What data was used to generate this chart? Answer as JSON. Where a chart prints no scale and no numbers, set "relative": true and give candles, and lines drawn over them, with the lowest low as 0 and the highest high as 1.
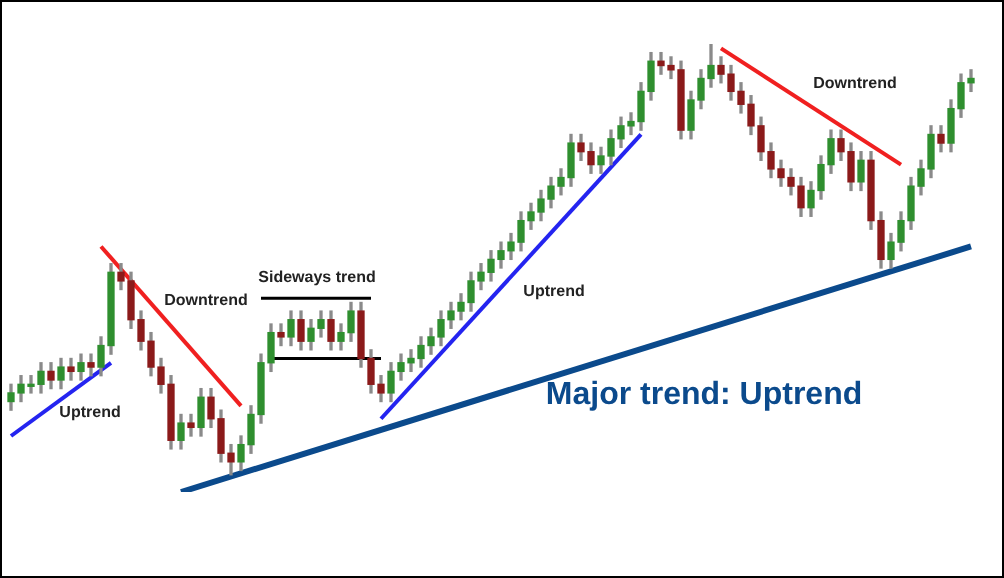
{
  "chart_data": {
    "type": "candlestick",
    "relative": true,
    "categories": [
      null,
      null,
      null,
      null,
      null,
      null,
      null,
      null,
      null,
      null,
      null,
      null,
      null,
      null,
      null,
      null,
      null,
      null,
      null,
      null,
      null,
      null,
      null,
      null,
      null,
      null,
      null,
      null,
      null,
      null,
      null,
      null,
      null,
      null,
      null,
      null,
      null,
      null,
      null,
      null,
      null,
      null,
      null,
      null,
      null,
      null,
      null,
      null,
      null,
      null,
      null,
      null,
      null,
      null,
      null,
      null,
      null,
      null,
      null,
      null,
      null,
      null,
      null,
      null,
      null,
      null,
      null,
      null,
      null,
      null,
      null,
      null,
      null,
      null,
      null,
      null,
      null,
      null,
      null,
      null,
      null,
      null,
      null,
      null,
      null,
      null,
      null,
      null,
      null,
      null,
      null,
      null,
      null,
      null,
      null,
      null,
      null
    ],
    "ohlc": [
      [
        0.17,
        0.21,
        0.15,
        0.19
      ],
      [
        0.19,
        0.23,
        0.17,
        0.21
      ],
      [
        0.21,
        0.23,
        0.19,
        0.21
      ],
      [
        0.21,
        0.26,
        0.19,
        0.24
      ],
      [
        0.24,
        0.26,
        0.2,
        0.22
      ],
      [
        0.22,
        0.27,
        0.2,
        0.25
      ],
      [
        0.25,
        0.27,
        0.22,
        0.24
      ],
      [
        0.24,
        0.28,
        0.22,
        0.26
      ],
      [
        0.26,
        0.28,
        0.23,
        0.25
      ],
      [
        0.25,
        0.32,
        0.23,
        0.3
      ],
      [
        0.3,
        0.49,
        0.28,
        0.47
      ],
      [
        0.47,
        0.49,
        0.43,
        0.45
      ],
      [
        0.45,
        0.47,
        0.34,
        0.36
      ],
      [
        0.36,
        0.38,
        0.29,
        0.31
      ],
      [
        0.31,
        0.33,
        0.23,
        0.25
      ],
      [
        0.25,
        0.27,
        0.19,
        0.21
      ],
      [
        0.21,
        0.23,
        0.06,
        0.08
      ],
      [
        0.08,
        0.14,
        0.06,
        0.12
      ],
      [
        0.12,
        0.14,
        0.09,
        0.11
      ],
      [
        0.11,
        0.2,
        0.09,
        0.18
      ],
      [
        0.18,
        0.2,
        0.11,
        0.13
      ],
      [
        0.13,
        0.15,
        0.03,
        0.05
      ],
      [
        0.05,
        0.07,
        0,
        0.03
      ],
      [
        0.03,
        0.09,
        0.01,
        0.07
      ],
      [
        0.07,
        0.16,
        0.05,
        0.14
      ],
      [
        0.14,
        0.28,
        0.12,
        0.26
      ],
      [
        0.26,
        0.35,
        0.24,
        0.33
      ],
      [
        0.33,
        0.35,
        0.3,
        0.32
      ],
      [
        0.32,
        0.38,
        0.3,
        0.36
      ],
      [
        0.36,
        0.38,
        0.29,
        0.31
      ],
      [
        0.31,
        0.36,
        0.29,
        0.34
      ],
      [
        0.34,
        0.38,
        0.32,
        0.36
      ],
      [
        0.36,
        0.38,
        0.29,
        0.31
      ],
      [
        0.31,
        0.35,
        0.29,
        0.33
      ],
      [
        0.33,
        0.4,
        0.31,
        0.38
      ],
      [
        0.38,
        0.4,
        0.25,
        0.27
      ],
      [
        0.27,
        0.29,
        0.19,
        0.21
      ],
      [
        0.21,
        0.23,
        0.17,
        0.19
      ],
      [
        0.19,
        0.26,
        0.17,
        0.24
      ],
      [
        0.24,
        0.28,
        0.22,
        0.26
      ],
      [
        0.26,
        0.29,
        0.24,
        0.27
      ],
      [
        0.27,
        0.32,
        0.25,
        0.3
      ],
      [
        0.3,
        0.34,
        0.28,
        0.32
      ],
      [
        0.32,
        0.38,
        0.3,
        0.36
      ],
      [
        0.36,
        0.4,
        0.34,
        0.38
      ],
      [
        0.38,
        0.42,
        0.36,
        0.4
      ],
      [
        0.4,
        0.47,
        0.38,
        0.45
      ],
      [
        0.45,
        0.49,
        0.43,
        0.47
      ],
      [
        0.47,
        0.52,
        0.45,
        0.5
      ],
      [
        0.5,
        0.54,
        0.48,
        0.52
      ],
      [
        0.52,
        0.56,
        0.5,
        0.54
      ],
      [
        0.54,
        0.61,
        0.52,
        0.59
      ],
      [
        0.59,
        0.63,
        0.57,
        0.61
      ],
      [
        0.61,
        0.66,
        0.59,
        0.64
      ],
      [
        0.64,
        0.69,
        0.62,
        0.67
      ],
      [
        0.67,
        0.71,
        0.65,
        0.69
      ],
      [
        0.69,
        0.79,
        0.67,
        0.77
      ],
      [
        0.77,
        0.79,
        0.73,
        0.75
      ],
      [
        0.75,
        0.77,
        0.7,
        0.72
      ],
      [
        0.72,
        0.76,
        0.7,
        0.74
      ],
      [
        0.74,
        0.8,
        0.72,
        0.78
      ],
      [
        0.78,
        0.83,
        0.76,
        0.81
      ],
      [
        0.81,
        0.84,
        0.79,
        0.82
      ],
      [
        0.82,
        0.91,
        0.8,
        0.89
      ],
      [
        0.89,
        0.98,
        0.87,
        0.96
      ],
      [
        0.96,
        0.98,
        0.93,
        0.95
      ],
      [
        0.95,
        0.97,
        0.92,
        0.94
      ],
      [
        0.94,
        0.96,
        0.78,
        0.8
      ],
      [
        0.8,
        0.89,
        0.78,
        0.87
      ],
      [
        0.87,
        0.94,
        0.85,
        0.92
      ],
      [
        0.92,
        1,
        0.9,
        0.95
      ],
      [
        0.95,
        0.97,
        0.91,
        0.93
      ],
      [
        0.93,
        0.95,
        0.87,
        0.89
      ],
      [
        0.89,
        0.91,
        0.84,
        0.86
      ],
      [
        0.86,
        0.88,
        0.79,
        0.81
      ],
      [
        0.81,
        0.83,
        0.73,
        0.75
      ],
      [
        0.75,
        0.77,
        0.69,
        0.71
      ],
      [
        0.71,
        0.73,
        0.67,
        0.69
      ],
      [
        0.69,
        0.71,
        0.65,
        0.67
      ],
      [
        0.67,
        0.69,
        0.6,
        0.62
      ],
      [
        0.62,
        0.68,
        0.6,
        0.66
      ],
      [
        0.66,
        0.74,
        0.64,
        0.72
      ],
      [
        0.72,
        0.8,
        0.7,
        0.78
      ],
      [
        0.78,
        0.8,
        0.73,
        0.75
      ],
      [
        0.75,
        0.77,
        0.66,
        0.68
      ],
      [
        0.68,
        0.75,
        0.66,
        0.73
      ],
      [
        0.73,
        0.75,
        0.57,
        0.59
      ],
      [
        0.59,
        0.61,
        0.48,
        0.5
      ],
      [
        0.5,
        0.56,
        0.48,
        0.54
      ],
      [
        0.54,
        0.61,
        0.52,
        0.59
      ],
      [
        0.59,
        0.69,
        0.57,
        0.67
      ],
      [
        0.67,
        0.73,
        0.65,
        0.71
      ],
      [
        0.71,
        0.81,
        0.69,
        0.79
      ],
      [
        0.79,
        0.81,
        0.75,
        0.77
      ],
      [
        0.77,
        0.87,
        0.75,
        0.85
      ],
      [
        0.85,
        0.93,
        0.83,
        0.91
      ],
      [
        0.91,
        0.94,
        0.89,
        0.92
      ]
    ],
    "series": [
      {
        "type": "line",
        "color": "#2424f0",
        "values": [
          0.09,
          null,
          null,
          null,
          null,
          null,
          null,
          null,
          null,
          null,
          0.26,
          null,
          null,
          null,
          null,
          null,
          null,
          null,
          null,
          null,
          null,
          null,
          null,
          null,
          null,
          null,
          null,
          null,
          null,
          null,
          null,
          null,
          null,
          null,
          null,
          null,
          null,
          null,
          null,
          null,
          null,
          null,
          null,
          null,
          null,
          null,
          null,
          null,
          null,
          null,
          null,
          null,
          null,
          null,
          null,
          null,
          null,
          null,
          null,
          null,
          null,
          null,
          null,
          null,
          null,
          null,
          null,
          null,
          null,
          null,
          null,
          null,
          null,
          null,
          null,
          null,
          null,
          null,
          null,
          null,
          null,
          null,
          null,
          null,
          null,
          null,
          null,
          null,
          null,
          null,
          null,
          null,
          null,
          null,
          null,
          null,
          null
        ]
      },
      {
        "type": "line",
        "color": "#f02020",
        "values": [
          null,
          null,
          null,
          null,
          null,
          null,
          null,
          null,
          null,
          0.53,
          null,
          null,
          null,
          null,
          null,
          null,
          null,
          null,
          null,
          null,
          null,
          null,
          null,
          0.16,
          null,
          null,
          null,
          null,
          null,
          null,
          null,
          null,
          null,
          null,
          null,
          null,
          null,
          null,
          null,
          null,
          null,
          null,
          null,
          null,
          null,
          null,
          null,
          null,
          null,
          null,
          null,
          null,
          null,
          null,
          null,
          null,
          null,
          null,
          null,
          null,
          null,
          null,
          null,
          null,
          null,
          null,
          null,
          null,
          null,
          null,
          null,
          null,
          null,
          null,
          null,
          null,
          null,
          null,
          null,
          null,
          null,
          null,
          null,
          null,
          null,
          null,
          null,
          null,
          null,
          null,
          null,
          null,
          null,
          null,
          null,
          null,
          null
        ]
      },
      {
        "type": "line",
        "color": "#000000",
        "values": [
          null,
          null,
          null,
          null,
          null,
          null,
          null,
          null,
          null,
          null,
          null,
          null,
          null,
          null,
          null,
          null,
          null,
          null,
          null,
          null,
          null,
          null,
          null,
          null,
          null,
          0.41,
          null,
          null,
          null,
          null,
          null,
          null,
          null,
          null,
          null,
          null,
          0.41,
          null,
          null,
          null,
          null,
          null,
          null,
          null,
          null,
          null,
          null,
          null,
          null,
          null,
          null,
          null,
          null,
          null,
          null,
          null,
          null,
          null,
          null,
          null,
          null,
          null,
          null,
          null,
          null,
          null,
          null,
          null,
          null,
          null,
          null,
          null,
          null,
          null,
          null,
          null,
          null,
          null,
          null,
          null,
          null,
          null,
          null,
          null,
          null,
          null,
          null,
          null,
          null,
          null,
          null,
          null,
          null,
          null,
          null,
          null,
          null
        ]
      },
      {
        "type": "line",
        "color": "#000000",
        "values": [
          null,
          null,
          null,
          null,
          null,
          null,
          null,
          null,
          null,
          null,
          null,
          null,
          null,
          null,
          null,
          null,
          null,
          null,
          null,
          null,
          null,
          null,
          null,
          null,
          null,
          null,
          0.27,
          null,
          null,
          null,
          null,
          null,
          null,
          null,
          null,
          null,
          null,
          0.27,
          null,
          null,
          null,
          null,
          null,
          null,
          null,
          null,
          null,
          null,
          null,
          null,
          null,
          null,
          null,
          null,
          null,
          null,
          null,
          null,
          null,
          null,
          null,
          null,
          null,
          null,
          null,
          null,
          null,
          null,
          null,
          null,
          null,
          null,
          null,
          null,
          null,
          null,
          null,
          null,
          null,
          null,
          null,
          null,
          null,
          null,
          null,
          null,
          null,
          null,
          null,
          null,
          null,
          null,
          null,
          null,
          null,
          null,
          null
        ]
      },
      {
        "type": "line",
        "color": "#2424f0",
        "values": [
          null,
          null,
          null,
          null,
          null,
          null,
          null,
          null,
          null,
          null,
          null,
          null,
          null,
          null,
          null,
          null,
          null,
          null,
          null,
          null,
          null,
          null,
          null,
          null,
          null,
          null,
          null,
          null,
          null,
          null,
          null,
          null,
          null,
          null,
          null,
          null,
          null,
          0.13,
          null,
          null,
          null,
          null,
          null,
          null,
          null,
          null,
          null,
          null,
          null,
          null,
          null,
          null,
          null,
          null,
          null,
          null,
          null,
          null,
          null,
          null,
          null,
          null,
          null,
          0.79,
          null,
          null,
          null,
          null,
          null,
          null,
          null,
          null,
          null,
          null,
          null,
          null,
          null,
          null,
          null,
          null,
          null,
          null,
          null,
          null,
          null,
          null,
          null,
          null,
          null,
          null,
          null,
          null,
          null,
          null,
          null,
          null,
          null
        ]
      },
      {
        "type": "line",
        "color": "#f02020",
        "values": [
          null,
          null,
          null,
          null,
          null,
          null,
          null,
          null,
          null,
          null,
          null,
          null,
          null,
          null,
          null,
          null,
          null,
          null,
          null,
          null,
          null,
          null,
          null,
          null,
          null,
          null,
          null,
          null,
          null,
          null,
          null,
          null,
          null,
          null,
          null,
          null,
          null,
          null,
          null,
          null,
          null,
          null,
          null,
          null,
          null,
          null,
          null,
          null,
          null,
          null,
          null,
          null,
          null,
          null,
          null,
          null,
          null,
          null,
          null,
          null,
          null,
          null,
          null,
          null,
          null,
          null,
          null,
          null,
          null,
          null,
          null,
          0.99,
          null,
          null,
          null,
          null,
          null,
          null,
          null,
          null,
          null,
          null,
          null,
          null,
          null,
          null,
          null,
          null,
          null,
          0.72,
          null,
          null,
          null,
          null,
          null,
          null,
          null
        ]
      },
      {
        "type": "line",
        "color": "#0b4a8c",
        "values": [
          null,
          null,
          null,
          null,
          null,
          null,
          null,
          null,
          null,
          null,
          null,
          null,
          null,
          null,
          null,
          null,
          null,
          -0.04,
          null,
          null,
          null,
          null,
          null,
          null,
          null,
          null,
          null,
          null,
          null,
          null,
          null,
          null,
          null,
          null,
          null,
          null,
          null,
          null,
          null,
          null,
          null,
          null,
          null,
          null,
          null,
          null,
          null,
          null,
          null,
          null,
          null,
          null,
          null,
          null,
          null,
          null,
          null,
          null,
          null,
          null,
          null,
          null,
          null,
          null,
          null,
          null,
          null,
          null,
          null,
          null,
          null,
          null,
          null,
          null,
          null,
          null,
          null,
          null,
          null,
          null,
          null,
          null,
          null,
          null,
          null,
          null,
          null,
          null,
          null,
          null,
          null,
          null,
          null,
          null,
          null,
          null,
          0.53
        ]
      }
    ],
    "annotations": [
      "Uptrend",
      "Downtrend",
      "Sideways trend",
      "Uptrend",
      "Downtrend",
      "Major trend: Uptrend"
    ]
  }
}
